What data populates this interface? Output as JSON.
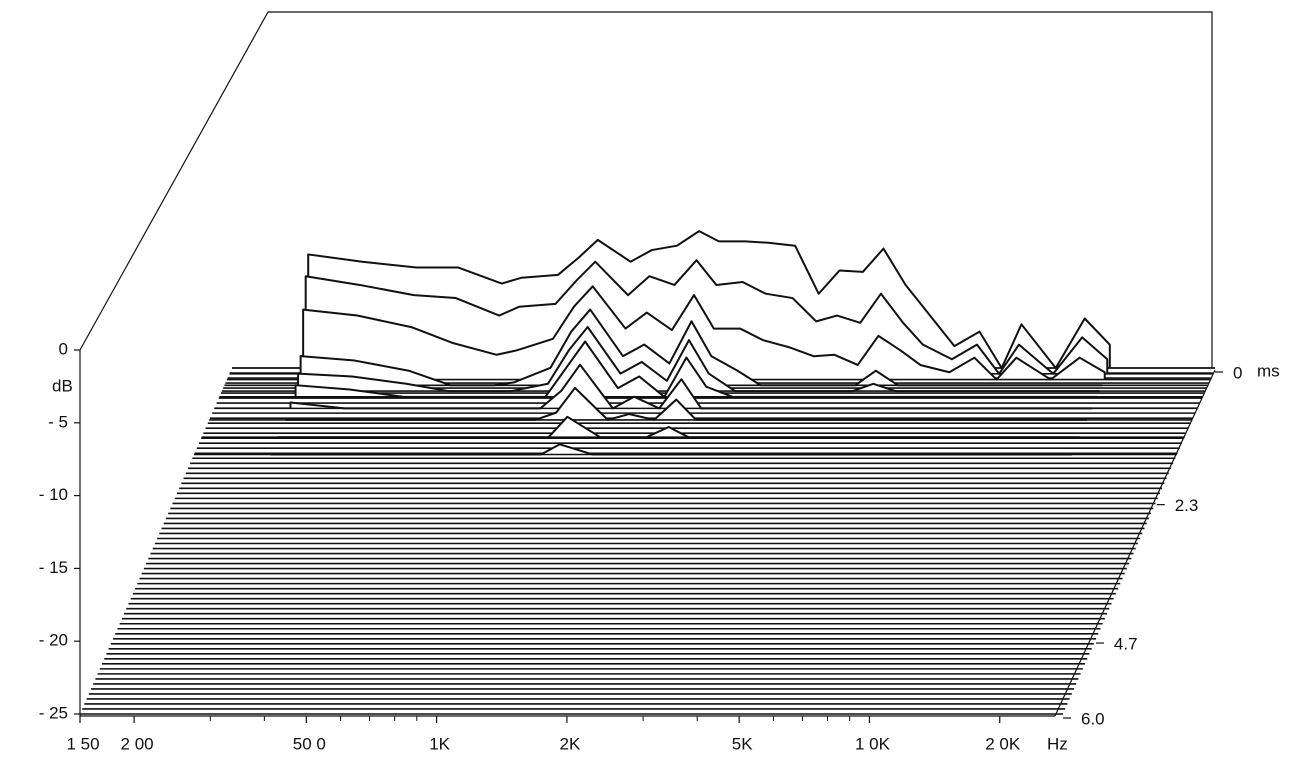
{
  "chart_data": {
    "type": "waterfall",
    "y_label": "dB",
    "x_unit": "Hz",
    "z_unit": "ms",
    "xlog": true,
    "xlim": [
      150,
      28000
    ],
    "xticks": [
      {
        "value": 150,
        "label": "1 50"
      },
      {
        "value": 200,
        "label": "2 00"
      },
      {
        "value": 500,
        "label": "50 0"
      },
      {
        "value": 1000,
        "label": "1K"
      },
      {
        "value": 2000,
        "label": "2K"
      },
      {
        "value": 5000,
        "label": "5K"
      },
      {
        "value": 10000,
        "label": "1 0K"
      },
      {
        "value": 20000,
        "label": "2 0K"
      }
    ],
    "xminorticks": [
      300,
      400,
      600,
      700,
      800,
      900,
      3000,
      4000,
      6000,
      7000,
      8000,
      9000
    ],
    "ylim": [
      -25,
      0
    ],
    "yticks": [
      0,
      {
        "value": -5,
        "label": "- 5"
      },
      {
        "value": -10,
        "label": "- 10"
      },
      {
        "value": -15,
        "label": "- 15"
      },
      {
        "value": -20,
        "label": "- 20"
      },
      {
        "value": -25,
        "label": "- 25"
      }
    ],
    "zlim": [
      0,
      6.0
    ],
    "zticks": [
      0,
      2.3,
      4.7,
      {
        "value": 6.0,
        "label": "6.0"
      }
    ],
    "color": "#111111",
    "x": [
      225,
      300,
      400,
      500,
      630,
      700,
      850,
      950,
      1050,
      1250,
      1400,
      1600,
      1800,
      2000,
      2300,
      2600,
      3000,
      3400,
      3800,
      4300,
      4800,
      5400,
      6000,
      7000,
      8000,
      9000,
      10000,
      12000,
      14000,
      16000
    ],
    "series": [
      {
        "time": 0,
        "values": [
          -17.2,
          -17.7,
          -18.1,
          -18.1,
          -19.2,
          -18.8,
          -18.6,
          -17.4,
          -16.2,
          -17.7,
          -16.9,
          -16.6,
          -15.6,
          -16.3,
          -16.3,
          -16.4,
          -16.6,
          -19.9,
          -18.3,
          -18.4,
          -16.8,
          -19.3,
          -21.0,
          -23.5,
          -22.5,
          -25,
          -22.0,
          -25,
          -21.6,
          -23.4
        ]
      },
      {
        "time": 0.1,
        "values": [
          -18.3,
          -18.9,
          -19.6,
          -19.8,
          -21.0,
          -20.4,
          -20.2,
          -18.6,
          -17.3,
          -19.6,
          -18.3,
          -18.9,
          -17.2,
          -18.9,
          -18.7,
          -19.5,
          -19.8,
          -21.4,
          -21.0,
          -21.5,
          -19.5,
          -21.5,
          -23.0,
          -24.0,
          -23.0,
          -25,
          -23.0,
          -25,
          -22.5,
          -24.0
        ]
      },
      {
        "time": 0.2,
        "values": [
          -20.2,
          -20.6,
          -21.4,
          -22.5,
          -23.3,
          -23.0,
          -22.2,
          -20.0,
          -18.6,
          -21.5,
          -20.4,
          -21.6,
          -19.2,
          -21.5,
          -21.5,
          -22.3,
          -22.8,
          -23.4,
          -23.3,
          -24.0,
          -22.0,
          -23.0,
          -24.0,
          -24.5,
          -23.5,
          -25,
          -23.5,
          -25,
          -23.5,
          -24.5
        ]
      },
      {
        "time": 0.3,
        "values": [
          -23.0,
          -23.3,
          -24.0,
          -25,
          -25,
          -24.8,
          -23.8,
          -21.3,
          -19.8,
          -23.0,
          -22.2,
          -23.5,
          -20.6,
          -23.0,
          -24.0,
          -25,
          -25,
          -25,
          -25,
          -25,
          -24.0,
          -25,
          -25,
          -25,
          -25,
          -25,
          -25,
          -25,
          -25,
          -25
        ]
      },
      {
        "time": 0.4,
        "values": [
          -23.8,
          -24.0,
          -24.5,
          -25,
          -25,
          -25,
          -24.5,
          -22.2,
          -20.6,
          -23.8,
          -23.0,
          -24.3,
          -21.5,
          -23.8,
          -25,
          -25,
          -25,
          -25,
          -25,
          -25,
          -24.5,
          -25,
          -25,
          -25,
          -25,
          -25,
          -25,
          -25,
          -25,
          -25
        ]
      },
      {
        "time": 0.5,
        "values": [
          -24.2,
          -24.5,
          -25,
          -25,
          -25,
          -25,
          -25,
          -23.0,
          -21.2,
          -24.4,
          -23.6,
          -25,
          -22.3,
          -24.3,
          -25,
          -25,
          -25,
          -25,
          -25,
          -25,
          -25,
          -25,
          -25,
          -25,
          -25,
          -25,
          -25,
          -25,
          -25,
          -25
        ]
      },
      {
        "time": 0.7,
        "values": [
          -24.6,
          -25,
          -25,
          -25,
          -25,
          -25,
          -25,
          -23.8,
          -22.0,
          -25,
          -24.2,
          -25,
          -23.0,
          -25,
          -25,
          -25,
          -25,
          -25,
          -25,
          -25,
          -25,
          -25,
          -25,
          -25,
          -25,
          -25,
          -25,
          -25,
          -25,
          -25
        ]
      },
      {
        "time": 0.9,
        "values": [
          -25,
          -25,
          -25,
          -25,
          -25,
          -25,
          -25,
          -24.5,
          -22.8,
          -25,
          -24.6,
          -25,
          -23.6,
          -25,
          -25,
          -25,
          -25,
          -25,
          -25,
          -25,
          -25,
          -25,
          -25,
          -25,
          -25,
          -25,
          -25,
          -25,
          -25,
          -25
        ]
      },
      {
        "time": 1.2,
        "values": [
          -25,
          -25,
          -25,
          -25,
          -25,
          -25,
          -25,
          -25,
          -23.6,
          -25,
          -25,
          -25,
          -24.3,
          -25,
          -25,
          -25,
          -25,
          -25,
          -25,
          -25,
          -25,
          -25,
          -25,
          -25,
          -25,
          -25,
          -25,
          -25,
          -25,
          -25
        ]
      },
      {
        "time": 1.5,
        "values": [
          -25,
          -25,
          -25,
          -25,
          -25,
          -25,
          -25,
          -25,
          -24.3,
          -25,
          -25,
          -25,
          -25,
          -25,
          -25,
          -25,
          -25,
          -25,
          -25,
          -25,
          -25,
          -25,
          -25,
          -25,
          -25,
          -25,
          -25,
          -25,
          -25,
          -25
        ]
      }
    ]
  }
}
